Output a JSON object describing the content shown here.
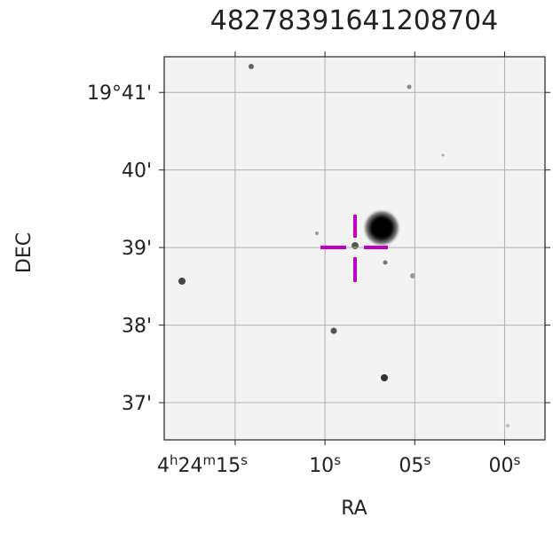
{
  "chart_data": {
    "type": "image",
    "title": "48278391641208704",
    "xlabel": "RA",
    "ylabel": "DEC",
    "xlim": [
      18.95,
      -2.25
    ],
    "xticks": [
      {
        "value": 15,
        "label": "4h24m15s"
      },
      {
        "value": 10,
        "label": "10s"
      },
      {
        "value": 5,
        "label": "05s"
      },
      {
        "value": 0,
        "label": "00s"
      }
    ],
    "ylim": [
      36.52,
      41.46
    ],
    "yticks": [
      {
        "value": 41,
        "label": "19°41'"
      },
      {
        "value": 40,
        "label": "40'"
      },
      {
        "value": 39,
        "label": "39'"
      },
      {
        "value": 38,
        "label": "38'"
      },
      {
        "value": 37,
        "label": "37'"
      }
    ],
    "grid": true
  }
}
